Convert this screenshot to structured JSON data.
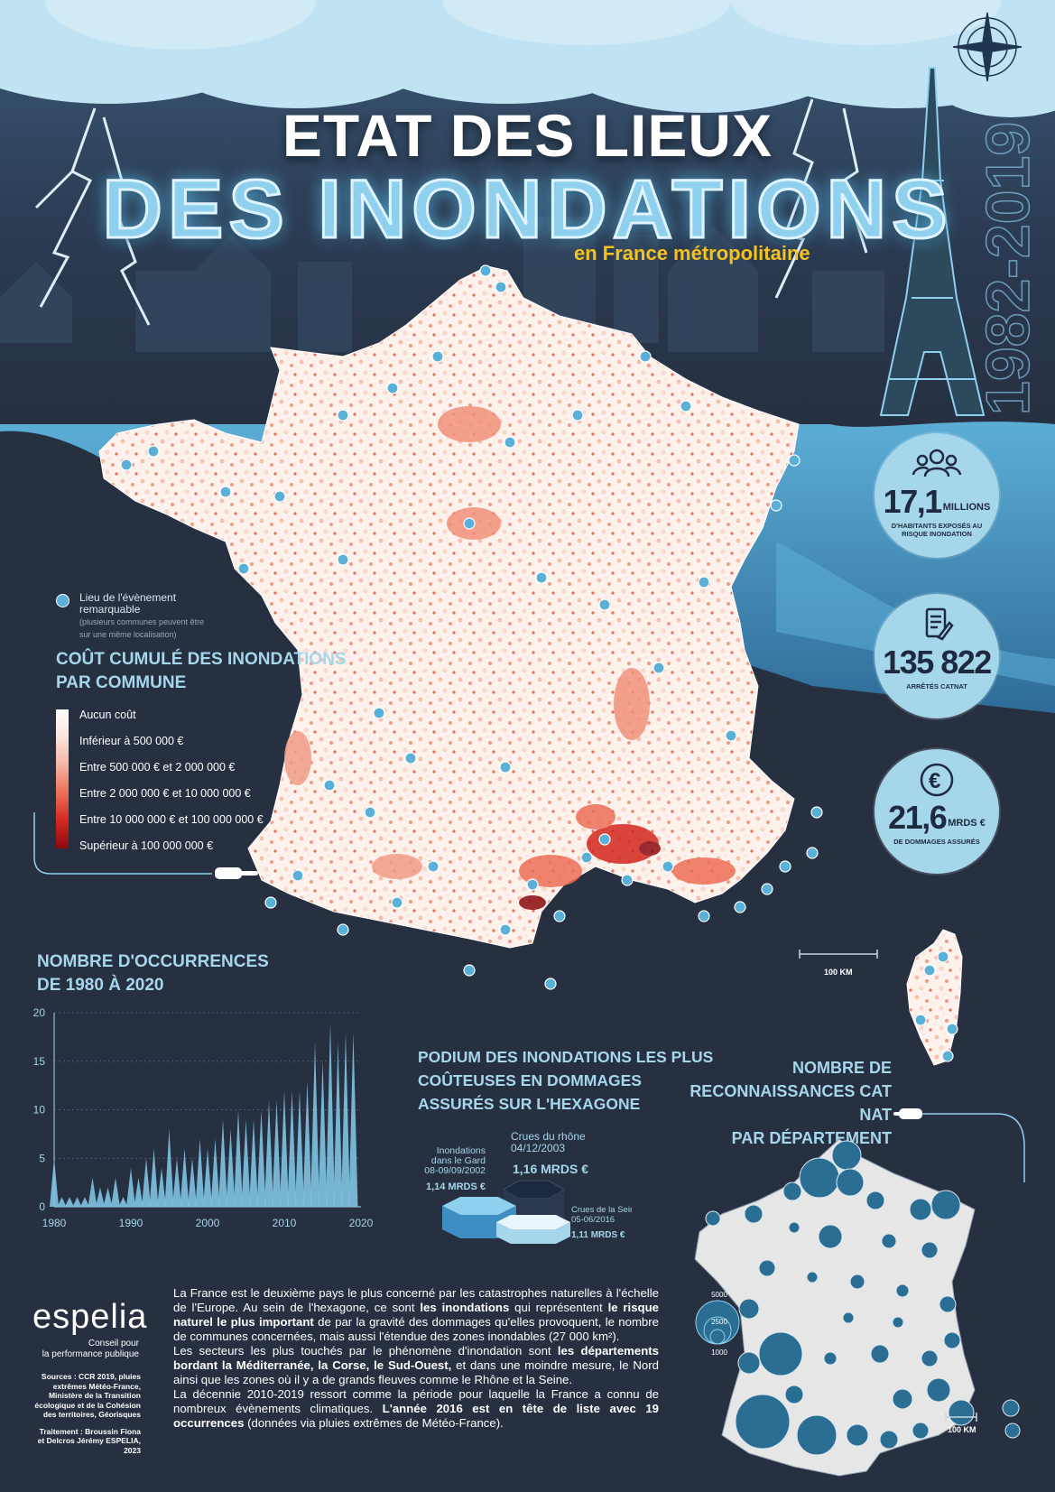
{
  "header": {
    "title_line1": "ETAT DES LIEUX",
    "title_line2": "DES INONDATIONS",
    "subtitle": "en France métropolitaine",
    "years": "1982-2019"
  },
  "stats": [
    {
      "icon": "people-icon",
      "number": "17,1",
      "unit": "MILLIONS",
      "label": "D'HABITANTS EXPOSÉS AU RISQUE INONDATION"
    },
    {
      "icon": "document-icon",
      "number": "135 822",
      "unit": "",
      "label": "ARRÊTÉS CATNAT"
    },
    {
      "icon": "euro-icon",
      "number": "21,6",
      "unit": "MRDS €",
      "label": "DE DOMMAGES ASSURÉS"
    }
  ],
  "map": {
    "event_legend_label": "Lieu de l'évènement remarquable",
    "event_legend_note": "(plusieurs communes peuvent être sur une même localisation)",
    "scale_label": "100 KM"
  },
  "cost_legend": {
    "title_line1": "COÛT CUMULÉ DES INONDATIONS",
    "title_line2": "PAR COMMUNE",
    "items": [
      {
        "label": "Aucun coût",
        "color": "#ffffff"
      },
      {
        "label": "Inférieur à 500 000 €",
        "color": "#fbe3dc"
      },
      {
        "label": "Entre 500 000 € et 2 000 000 €",
        "color": "#f6b4a2"
      },
      {
        "label": "Entre 2 000 000 € et 10 000 000 €",
        "color": "#ed6f56"
      },
      {
        "label": "Entre 10 000 000 € et 100 000 000 €",
        "color": "#d3281f"
      },
      {
        "label": "Supérieur à 100 000 000 €",
        "color": "#8a0a0f"
      }
    ]
  },
  "occurrences": {
    "title_line1": "NOMBRE D'OCCURRENCES",
    "title_line2": "DE 1980 À 2020"
  },
  "chart_data": {
    "type": "area",
    "title": "NOMBRE D'OCCURRENCES DE 1980 À 2020",
    "x": [
      1980,
      1981,
      1982,
      1983,
      1984,
      1985,
      1986,
      1987,
      1988,
      1989,
      1990,
      1991,
      1992,
      1993,
      1994,
      1995,
      1996,
      1997,
      1998,
      1999,
      2000,
      2001,
      2002,
      2003,
      2004,
      2005,
      2006,
      2007,
      2008,
      2009,
      2010,
      2011,
      2012,
      2013,
      2014,
      2015,
      2016,
      2017,
      2018,
      2019,
      2020
    ],
    "values": [
      5,
      1,
      1,
      1,
      1,
      3,
      2,
      2,
      3,
      1,
      4,
      3,
      5,
      6,
      4,
      8,
      5,
      6,
      5,
      7,
      6,
      7,
      9,
      8,
      10,
      9,
      9,
      10,
      11,
      11,
      12,
      12,
      12,
      13,
      17,
      15,
      19,
      17,
      18,
      18,
      0
    ],
    "xticks": [
      "1980",
      "1990",
      "2000",
      "2010",
      "2020"
    ],
    "yticks": [
      "0",
      "5",
      "10",
      "15",
      "20"
    ],
    "ylim": [
      0,
      20
    ],
    "xlim": [
      1980,
      2020
    ],
    "grid": true,
    "color": "#7fc3e2"
  },
  "podium": {
    "title_line1": "PODIUM DES INONDATIONS LES PLUS",
    "title_line2": "COÛTEUSES EN DOMMAGES",
    "title_line3": "ASSURÉS SUR L'HEXAGONE",
    "first_name": "Crues du rhône",
    "first_date": "04/12/2003",
    "first_value": "1,16 MRDS €",
    "second_name_1": "Inondations",
    "second_name_2": "dans le Gard",
    "second_date": "08-09/09/2002",
    "second_value": "1,14 MRDS €",
    "third_name": "Crues de la Seine",
    "third_date": "05-06/2016",
    "third_value": "1,11 MRDS €"
  },
  "catnat": {
    "title_line1": "NOMBRE DE",
    "title_line2": "RECONNAISSANCES CAT NAT",
    "title_line3": "PAR DÉPARTEMENT",
    "legend_values": [
      "5000",
      "2500",
      "1000"
    ],
    "scale_label": "100 KM"
  },
  "body": {
    "p1_a": "La France est le deuxième pays le plus concerné par les catastrophes naturelles à l'échelle de l'Europe. Au sein de l'hexagone, ce sont ",
    "p1_b": "les inondations",
    "p1_c": " qui représentent ",
    "p1_d": "le risque naturel le plus important",
    "p1_e": " de par la gravité des dommages qu'elles provoquent, le nombre de communes concernées, mais aussi l'étendue des zones inondables (27 000 km²).",
    "p2_a": "Les secteurs les plus touchés par le phénomène d'inondation sont ",
    "p2_b": "les départements bordant la Méditerranée, la Corse, le Sud-Ouest,",
    "p2_c": " et dans une moindre mesure, le Nord ainsi que les zones où il y a de grands fleuves comme le Rhône et la Seine.",
    "p3_a": "La décennie 2010-2019 ressort comme la période pour laquelle la France a connu de nombreux évènements climatiques. ",
    "p3_b": "L'année 2016 est en tête de liste avec 19 occurrences",
    "p3_c": " (données via pluies extrêmes de Météo-France)."
  },
  "footer": {
    "brand": "espelia",
    "tagline_1": "Conseil pour",
    "tagline_2": "la performance publique",
    "sources": "Sources : CCR 2019, pluies extrêmes Météo-France, Ministère de la Transition écologique et de la Cohésion des territoires, Géorisques",
    "credits": "Traitement : Broussin Fiona et Delcros Jérémy ESPELIA, 2023"
  },
  "colors": {
    "background": "#263041",
    "accent": "#a6d6ea",
    "title_yellow": "#f6c21e",
    "water": "#3f8fc0",
    "marker": "#5ab0d6",
    "catnat_bubble": "#2a6e93"
  }
}
